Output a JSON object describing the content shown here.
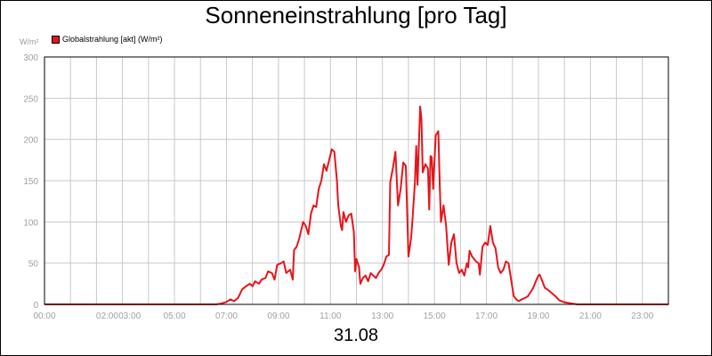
{
  "chart_data": {
    "type": "line",
    "title": "Sonneneinstrahlung [pro Tag]",
    "date_label": "31.08",
    "y_unit": "W/m²",
    "ylim": [
      0,
      300
    ],
    "yticks": [
      0,
      50,
      100,
      150,
      200,
      250,
      300
    ],
    "xlim": [
      0,
      24
    ],
    "xticks": [
      {
        "x": 0,
        "label": "00:00"
      },
      {
        "x": 2,
        "label": "02:00"
      },
      {
        "x": 3,
        "label": "03:00"
      },
      {
        "x": 5,
        "label": "05:00"
      },
      {
        "x": 7,
        "label": "07:00"
      },
      {
        "x": 9,
        "label": "09:00"
      },
      {
        "x": 11,
        "label": "11:00"
      },
      {
        "x": 13,
        "label": "13:00"
      },
      {
        "x": 15,
        "label": "15:00"
      },
      {
        "x": 17,
        "label": "17:00"
      },
      {
        "x": 19,
        "label": "19:00"
      },
      {
        "x": 21,
        "label": "21:00"
      },
      {
        "x": 23,
        "label": "23:00"
      }
    ],
    "grid": true,
    "legend_position": "top-left",
    "series": [
      {
        "name": "Globalstrahlung [akt] (W/m²)",
        "color": "#e8141b",
        "points": [
          [
            0,
            0
          ],
          [
            6.6,
            0
          ],
          [
            6.8,
            1
          ],
          [
            7.0,
            3
          ],
          [
            7.15,
            6
          ],
          [
            7.3,
            4
          ],
          [
            7.45,
            8
          ],
          [
            7.6,
            18
          ],
          [
            7.75,
            22
          ],
          [
            7.9,
            25
          ],
          [
            8.0,
            22
          ],
          [
            8.1,
            28
          ],
          [
            8.25,
            25
          ],
          [
            8.35,
            30
          ],
          [
            8.5,
            32
          ],
          [
            8.6,
            40
          ],
          [
            8.75,
            38
          ],
          [
            8.85,
            30
          ],
          [
            8.95,
            48
          ],
          [
            9.1,
            50
          ],
          [
            9.2,
            52
          ],
          [
            9.3,
            38
          ],
          [
            9.45,
            42
          ],
          [
            9.55,
            30
          ],
          [
            9.6,
            66
          ],
          [
            9.7,
            70
          ],
          [
            9.8,
            80
          ],
          [
            9.95,
            100
          ],
          [
            10.05,
            95
          ],
          [
            10.15,
            85
          ],
          [
            10.25,
            110
          ],
          [
            10.35,
            120
          ],
          [
            10.45,
            118
          ],
          [
            10.55,
            140
          ],
          [
            10.65,
            150
          ],
          [
            10.75,
            170
          ],
          [
            10.85,
            162
          ],
          [
            10.95,
            175
          ],
          [
            11.05,
            188
          ],
          [
            11.15,
            185
          ],
          [
            11.25,
            150
          ],
          [
            11.3,
            120
          ],
          [
            11.4,
            95
          ],
          [
            11.45,
            90
          ],
          [
            11.5,
            112
          ],
          [
            11.6,
            100
          ],
          [
            11.7,
            108
          ],
          [
            11.8,
            110
          ],
          [
            11.9,
            88
          ],
          [
            11.95,
            40
          ],
          [
            12.0,
            55
          ],
          [
            12.1,
            45
          ],
          [
            12.15,
            25
          ],
          [
            12.25,
            32
          ],
          [
            12.35,
            35
          ],
          [
            12.45,
            28
          ],
          [
            12.55,
            38
          ],
          [
            12.65,
            35
          ],
          [
            12.75,
            32
          ],
          [
            12.85,
            38
          ],
          [
            12.95,
            42
          ],
          [
            13.05,
            48
          ],
          [
            13.15,
            58
          ],
          [
            13.25,
            60
          ],
          [
            13.3,
            148
          ],
          [
            13.4,
            165
          ],
          [
            13.5,
            185
          ],
          [
            13.6,
            120
          ],
          [
            13.7,
            140
          ],
          [
            13.8,
            172
          ],
          [
            13.9,
            168
          ],
          [
            14.0,
            58
          ],
          [
            14.1,
            80
          ],
          [
            14.15,
            100
          ],
          [
            14.25,
            148
          ],
          [
            14.3,
            192
          ],
          [
            14.35,
            145
          ],
          [
            14.45,
            240
          ],
          [
            14.5,
            225
          ],
          [
            14.55,
            160
          ],
          [
            14.65,
            170
          ],
          [
            14.75,
            165
          ],
          [
            14.8,
            115
          ],
          [
            14.85,
            180
          ],
          [
            14.9,
            178
          ],
          [
            14.95,
            140
          ],
          [
            15.05,
            205
          ],
          [
            15.15,
            210
          ],
          [
            15.2,
            150
          ],
          [
            15.25,
            100
          ],
          [
            15.35,
            120
          ],
          [
            15.45,
            95
          ],
          [
            15.55,
            48
          ],
          [
            15.65,
            75
          ],
          [
            15.75,
            85
          ],
          [
            15.85,
            50
          ],
          [
            15.95,
            38
          ],
          [
            16.05,
            42
          ],
          [
            16.15,
            35
          ],
          [
            16.25,
            50
          ],
          [
            16.3,
            45
          ],
          [
            16.35,
            65
          ],
          [
            16.45,
            58
          ],
          [
            16.6,
            52
          ],
          [
            16.7,
            50
          ],
          [
            16.75,
            36
          ],
          [
            16.85,
            70
          ],
          [
            16.95,
            75
          ],
          [
            17.05,
            72
          ],
          [
            17.15,
            95
          ],
          [
            17.25,
            75
          ],
          [
            17.35,
            68
          ],
          [
            17.45,
            45
          ],
          [
            17.55,
            38
          ],
          [
            17.65,
            42
          ],
          [
            17.75,
            52
          ],
          [
            17.85,
            50
          ],
          [
            17.95,
            30
          ],
          [
            18.05,
            10
          ],
          [
            18.15,
            6
          ],
          [
            18.25,
            4
          ],
          [
            18.35,
            6
          ],
          [
            18.5,
            8
          ],
          [
            18.6,
            10
          ],
          [
            18.7,
            15
          ],
          [
            18.8,
            20
          ],
          [
            18.9,
            28
          ],
          [
            19.0,
            35
          ],
          [
            19.05,
            36
          ],
          [
            19.15,
            28
          ],
          [
            19.25,
            20
          ],
          [
            19.35,
            18
          ],
          [
            19.5,
            14
          ],
          [
            19.65,
            10
          ],
          [
            19.8,
            5
          ],
          [
            19.95,
            3
          ],
          [
            20.1,
            2
          ],
          [
            20.3,
            1
          ],
          [
            20.5,
            0
          ],
          [
            24,
            0
          ]
        ]
      }
    ]
  }
}
